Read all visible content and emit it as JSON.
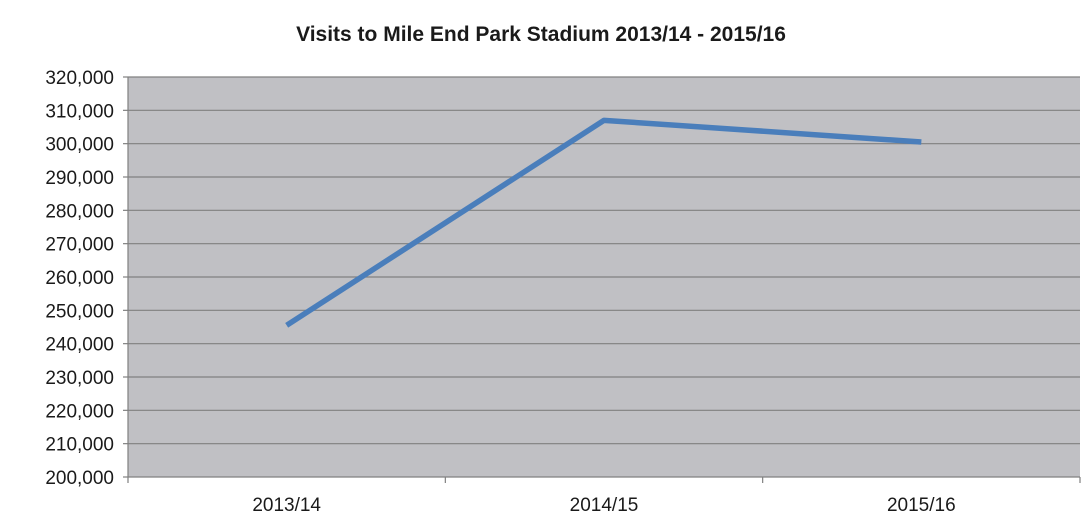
{
  "chart_data": {
    "type": "line",
    "title": "Visits to Mile End Park Stadium 2013/14 - 2015/16",
    "xlabel": "",
    "ylabel": "",
    "categories": [
      "2013/14",
      "2014/15",
      "2015/16"
    ],
    "series": [
      {
        "values": [
          245500,
          307000,
          300500
        ]
      }
    ],
    "ylim": [
      200000,
      320000
    ],
    "yticks": [
      200000,
      210000,
      220000,
      230000,
      240000,
      250000,
      260000,
      270000,
      280000,
      290000,
      300000,
      310000,
      320000
    ],
    "ytick_labels": [
      "200,000",
      "210,000",
      "220,000",
      "230,000",
      "240,000",
      "250,000",
      "260,000",
      "270,000",
      "280,000",
      "290,000",
      "300,000",
      "310,000",
      "320,000"
    ],
    "grid": true,
    "legend": "none",
    "colors": {
      "line": "#4a7ebb",
      "plot_background": "#c0c0c4",
      "gridline": "#808080",
      "axis": "#808080"
    }
  }
}
